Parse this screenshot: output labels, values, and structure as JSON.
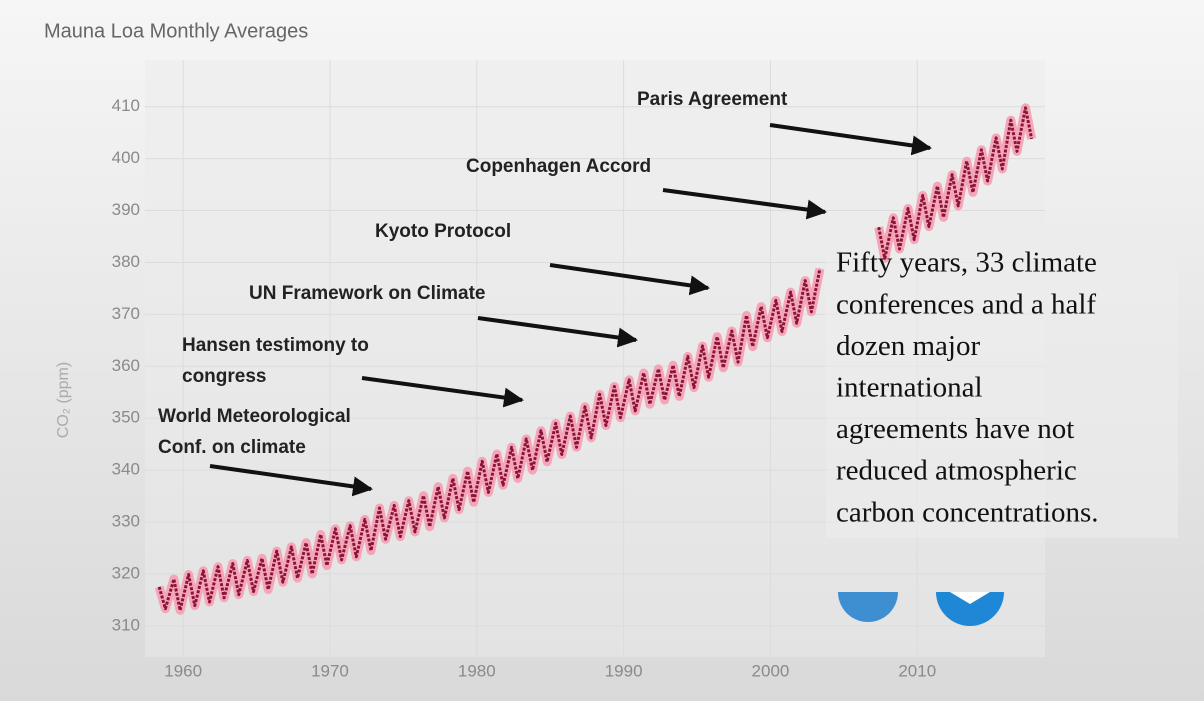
{
  "chart_data": {
    "type": "line",
    "title": "Mauna Loa Monthly Averages",
    "y_label": "CO₂ (ppm)",
    "xlim": [
      1957.4,
      2018.7
    ],
    "xticks": [
      1960,
      1970,
      1980,
      1990,
      2000,
      2010
    ],
    "ylim": [
      304,
      419
    ],
    "yticks": [
      310,
      320,
      330,
      340,
      350,
      360,
      370,
      380,
      390,
      400,
      410
    ],
    "grid": true,
    "x": [
      1958.37,
      1958.79,
      1959.37,
      1959.79,
      1960.37,
      1960.79,
      1961.37,
      1961.79,
      1962.37,
      1962.79,
      1963.37,
      1963.79,
      1964.37,
      1964.79,
      1965.37,
      1965.79,
      1966.37,
      1966.79,
      1967.37,
      1967.79,
      1968.37,
      1968.79,
      1969.37,
      1969.79,
      1970.37,
      1970.79,
      1971.37,
      1971.79,
      1972.37,
      1972.79,
      1973.37,
      1973.79,
      1974.37,
      1974.79,
      1975.37,
      1975.79,
      1976.37,
      1976.79,
      1977.37,
      1977.79,
      1978.37,
      1978.79,
      1979.37,
      1979.79,
      1980.37,
      1980.79,
      1981.37,
      1981.79,
      1982.37,
      1982.79,
      1983.37,
      1983.79,
      1984.37,
      1984.79,
      1985.37,
      1985.79,
      1986.37,
      1986.79,
      1987.37,
      1987.79,
      1988.37,
      1988.79,
      1989.37,
      1989.79,
      1990.37,
      1990.79,
      1991.37,
      1991.79,
      1992.37,
      1992.79,
      1993.37,
      1993.79,
      1994.37,
      1994.79,
      1995.37,
      1995.79,
      1996.37,
      1996.79,
      1997.37,
      1997.79,
      1998.37,
      1998.79,
      1999.37,
      1999.79,
      2000.37,
      2000.79,
      2001.37,
      2001.79,
      2002.37,
      2002.79,
      2003.37,
      2005.5,
      2007.37,
      2007.79,
      2008.37,
      2008.79,
      2009.37,
      2009.79,
      2010.37,
      2010.79,
      2011.37,
      2011.79,
      2012.37,
      2012.79,
      2013.37,
      2013.79,
      2014.37,
      2014.79,
      2015.37,
      2015.79,
      2016.37,
      2016.79,
      2017.37,
      2017.79
    ],
    "series": [
      {
        "name": "CO₂",
        "color": "#8b1538",
        "values": [
          317.5,
          313.3,
          319.0,
          313.0,
          319.9,
          313.9,
          320.6,
          314.6,
          321.4,
          315.4,
          322.0,
          316.0,
          322.6,
          316.6,
          323.0,
          317.0,
          324.4,
          318.4,
          325.2,
          319.2,
          326.0,
          320.0,
          327.6,
          321.6,
          328.7,
          322.7,
          329.3,
          323.3,
          330.5,
          324.5,
          332.7,
          326.7,
          333.2,
          327.2,
          334.1,
          328.1,
          335.1,
          329.1,
          336.8,
          330.8,
          338.4,
          332.4,
          339.8,
          333.8,
          341.7,
          335.7,
          343.1,
          337.1,
          344.4,
          338.4,
          346.0,
          340.0,
          347.6,
          341.6,
          349.0,
          343.0,
          350.4,
          344.4,
          352.2,
          346.2,
          354.6,
          348.6,
          356.1,
          350.1,
          357.4,
          351.4,
          358.7,
          352.7,
          359.5,
          353.5,
          360.2,
          354.2,
          361.9,
          355.9,
          363.9,
          357.9,
          365.7,
          359.7,
          366.8,
          360.8,
          369.8,
          363.8,
          371.5,
          365.5,
          372.7,
          366.7,
          374.3,
          368.3,
          376.5,
          370.5,
          378.8,
          null,
          386.8,
          380.8,
          388.6,
          382.6,
          390.4,
          384.4,
          392.9,
          386.9,
          394.7,
          388.7,
          396.9,
          390.9,
          399.5,
          393.5,
          401.7,
          395.7,
          404.0,
          398.0,
          407.4,
          401.4,
          409.8,
          403.8
        ]
      }
    ],
    "annotations": [
      {
        "lines": [
          "Paris Agreement"
        ]
      },
      {
        "lines": [
          "Copenhagen Accord"
        ]
      },
      {
        "lines": [
          "Kyoto Protocol"
        ]
      },
      {
        "lines": [
          "UN Framework on Climate"
        ]
      },
      {
        "lines": [
          "Hansen testimony to",
          "congress"
        ]
      },
      {
        "lines": [
          "World Meteorological",
          "Conf. on climate"
        ]
      }
    ],
    "note": {
      "lines": [
        "Fifty years, 33 climate",
        "conferences and a half",
        "dozen major",
        "international",
        "agreements  have not",
        "reduced atmospheric",
        "carbon concentrations."
      ]
    }
  }
}
